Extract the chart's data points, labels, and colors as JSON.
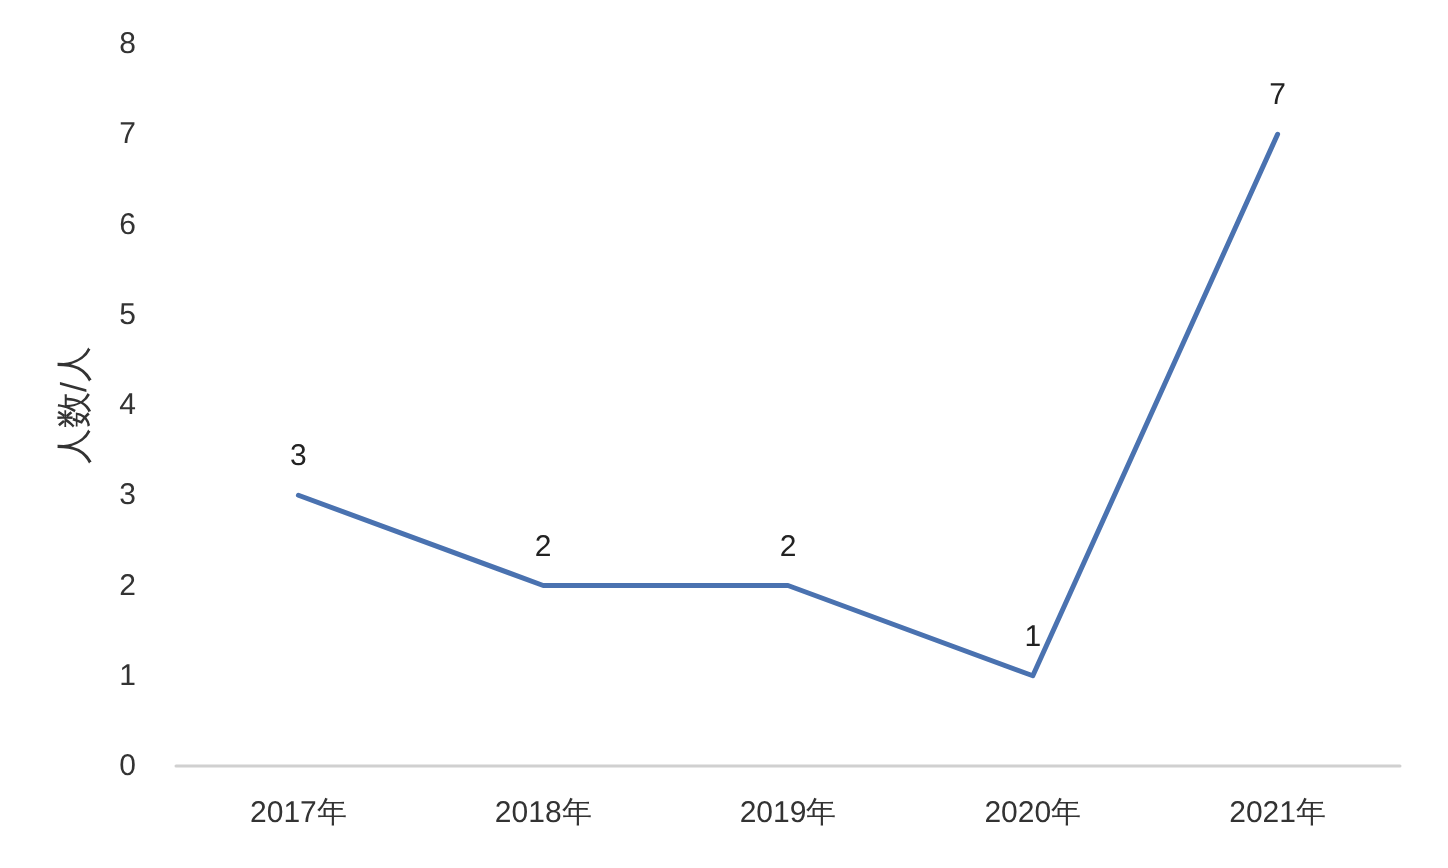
{
  "chart_data": {
    "type": "line",
    "ylabel": "人数/人",
    "categories": [
      "2017年",
      "2018年",
      "2019年",
      "2020年",
      "2021年"
    ],
    "series": [
      {
        "color": "#4a72b0",
        "values": [
          3,
          2,
          2,
          1,
          7
        ]
      }
    ],
    "ylim": [
      0,
      8
    ],
    "yticks": [
      0,
      1,
      2,
      3,
      4,
      5,
      6,
      7,
      8
    ],
    "grid": false,
    "marker": "none",
    "line_style": "solid",
    "data_labels": true
  }
}
